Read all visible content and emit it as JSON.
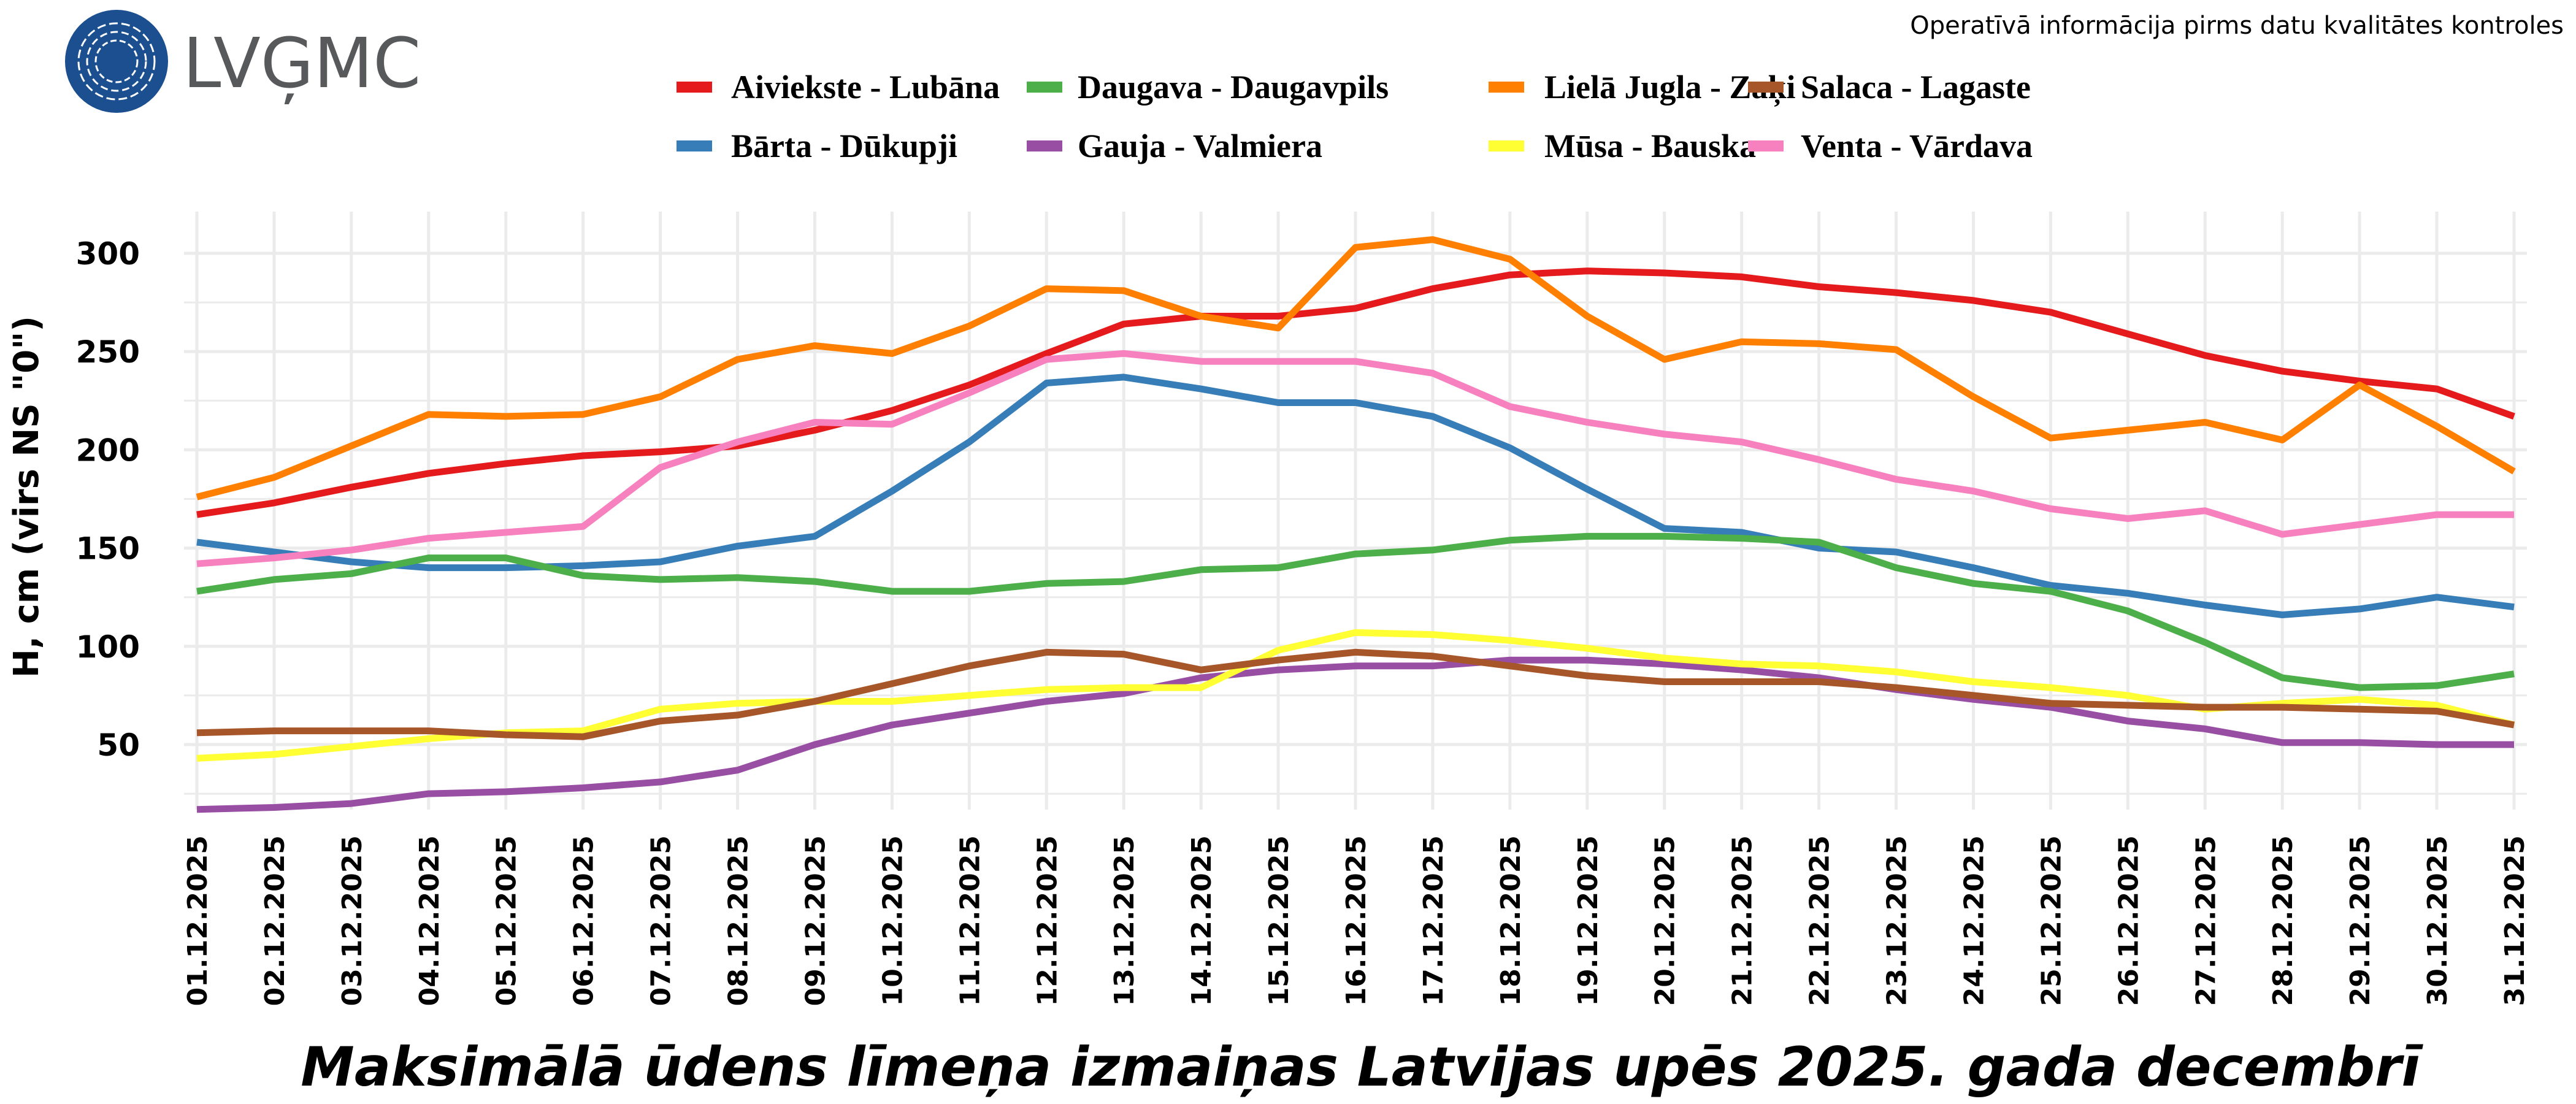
{
  "header": {
    "logo_text": "LVĢMC",
    "subtitle": "Operatīvā informācija pirms datu kvalitātes kontroles"
  },
  "chart_data": {
    "type": "line",
    "title": "Maksimālā ūdens līmeņa izmaiņas Latvijas upēs 2025. gada decembrī",
    "xlabel": "",
    "ylabel": "H, cm (virs NS \"0\")",
    "ylim": [
      12,
      322
    ],
    "yticks": [
      50,
      100,
      150,
      200,
      250,
      300
    ],
    "grid": true,
    "legend_position": "top",
    "categories": [
      "01.12.2025",
      "02.12.2025",
      "03.12.2025",
      "04.12.2025",
      "05.12.2025",
      "06.12.2025",
      "07.12.2025",
      "08.12.2025",
      "09.12.2025",
      "10.12.2025",
      "11.12.2025",
      "12.12.2025",
      "13.12.2025",
      "14.12.2025",
      "15.12.2025",
      "16.12.2025",
      "17.12.2025",
      "18.12.2025",
      "19.12.2025",
      "20.12.2025",
      "21.12.2025",
      "22.12.2025",
      "23.12.2025",
      "24.12.2025",
      "25.12.2025",
      "26.12.2025",
      "27.12.2025",
      "28.12.2025",
      "29.12.2025",
      "30.12.2025",
      "31.12.2025"
    ],
    "series": [
      {
        "name": "Aiviekste - Lubāna",
        "color": "#e41a1c",
        "values": [
          167,
          173,
          181,
          188,
          193,
          197,
          199,
          202,
          210,
          220,
          233,
          249,
          264,
          268,
          268,
          272,
          282,
          289,
          291,
          290,
          288,
          283,
          280,
          276,
          270,
          259,
          248,
          240,
          235,
          231,
          217
        ]
      },
      {
        "name": "Bārta - Dūkupji",
        "color": "#377eb8",
        "values": [
          153,
          148,
          143,
          140,
          140,
          141,
          143,
          151,
          156,
          179,
          204,
          234,
          237,
          231,
          224,
          224,
          217,
          201,
          180,
          160,
          158,
          150,
          148,
          140,
          131,
          127,
          121,
          116,
          119,
          125,
          120
        ]
      },
      {
        "name": "Daugava - Daugavpils",
        "color": "#4daf4a",
        "values": [
          128,
          134,
          137,
          145,
          145,
          136,
          134,
          135,
          133,
          128,
          128,
          132,
          133,
          139,
          140,
          147,
          149,
          154,
          156,
          156,
          155,
          153,
          140,
          132,
          128,
          118,
          102,
          84,
          79,
          80,
          86
        ]
      },
      {
        "name": "Gauja - Valmiera",
        "color": "#984ea3",
        "values": [
          17,
          18,
          20,
          25,
          26,
          28,
          31,
          37,
          50,
          60,
          66,
          72,
          76,
          84,
          88,
          90,
          90,
          93,
          93,
          91,
          88,
          84,
          78,
          73,
          69,
          62,
          58,
          51,
          51,
          50,
          50
        ]
      },
      {
        "name": "Lielā Jugla - Zaķi",
        "color": "#ff7f00",
        "values": [
          176,
          186,
          202,
          218,
          217,
          218,
          227,
          246,
          253,
          249,
          263,
          282,
          281,
          268,
          262,
          303,
          307,
          297,
          268,
          246,
          255,
          254,
          251,
          227,
          206,
          210,
          214,
          205,
          233,
          212,
          189
        ]
      },
      {
        "name": "Mūsa - Bauska",
        "color": "#ffff33",
        "values": [
          43,
          45,
          49,
          53,
          56,
          57,
          68,
          71,
          72,
          72,
          75,
          78,
          79,
          79,
          98,
          107,
          106,
          103,
          99,
          94,
          91,
          90,
          87,
          82,
          79,
          75,
          68,
          71,
          73,
          70,
          60
        ]
      },
      {
        "name": "Salaca - Lagaste",
        "color": "#a65628",
        "values": [
          56,
          57,
          57,
          57,
          55,
          54,
          62,
          65,
          72,
          81,
          90,
          97,
          96,
          88,
          93,
          97,
          95,
          90,
          85,
          82,
          82,
          82,
          79,
          75,
          71,
          70,
          69,
          69,
          68,
          67,
          60
        ]
      },
      {
        "name": "Venta - Vārdava",
        "color": "#f781bf",
        "values": [
          142,
          145,
          149,
          155,
          158,
          161,
          191,
          204,
          214,
          213,
          229,
          246,
          249,
          245,
          245,
          245,
          239,
          222,
          214,
          208,
          204,
          195,
          185,
          179,
          170,
          165,
          169,
          157,
          162,
          167,
          167
        ]
      }
    ]
  }
}
